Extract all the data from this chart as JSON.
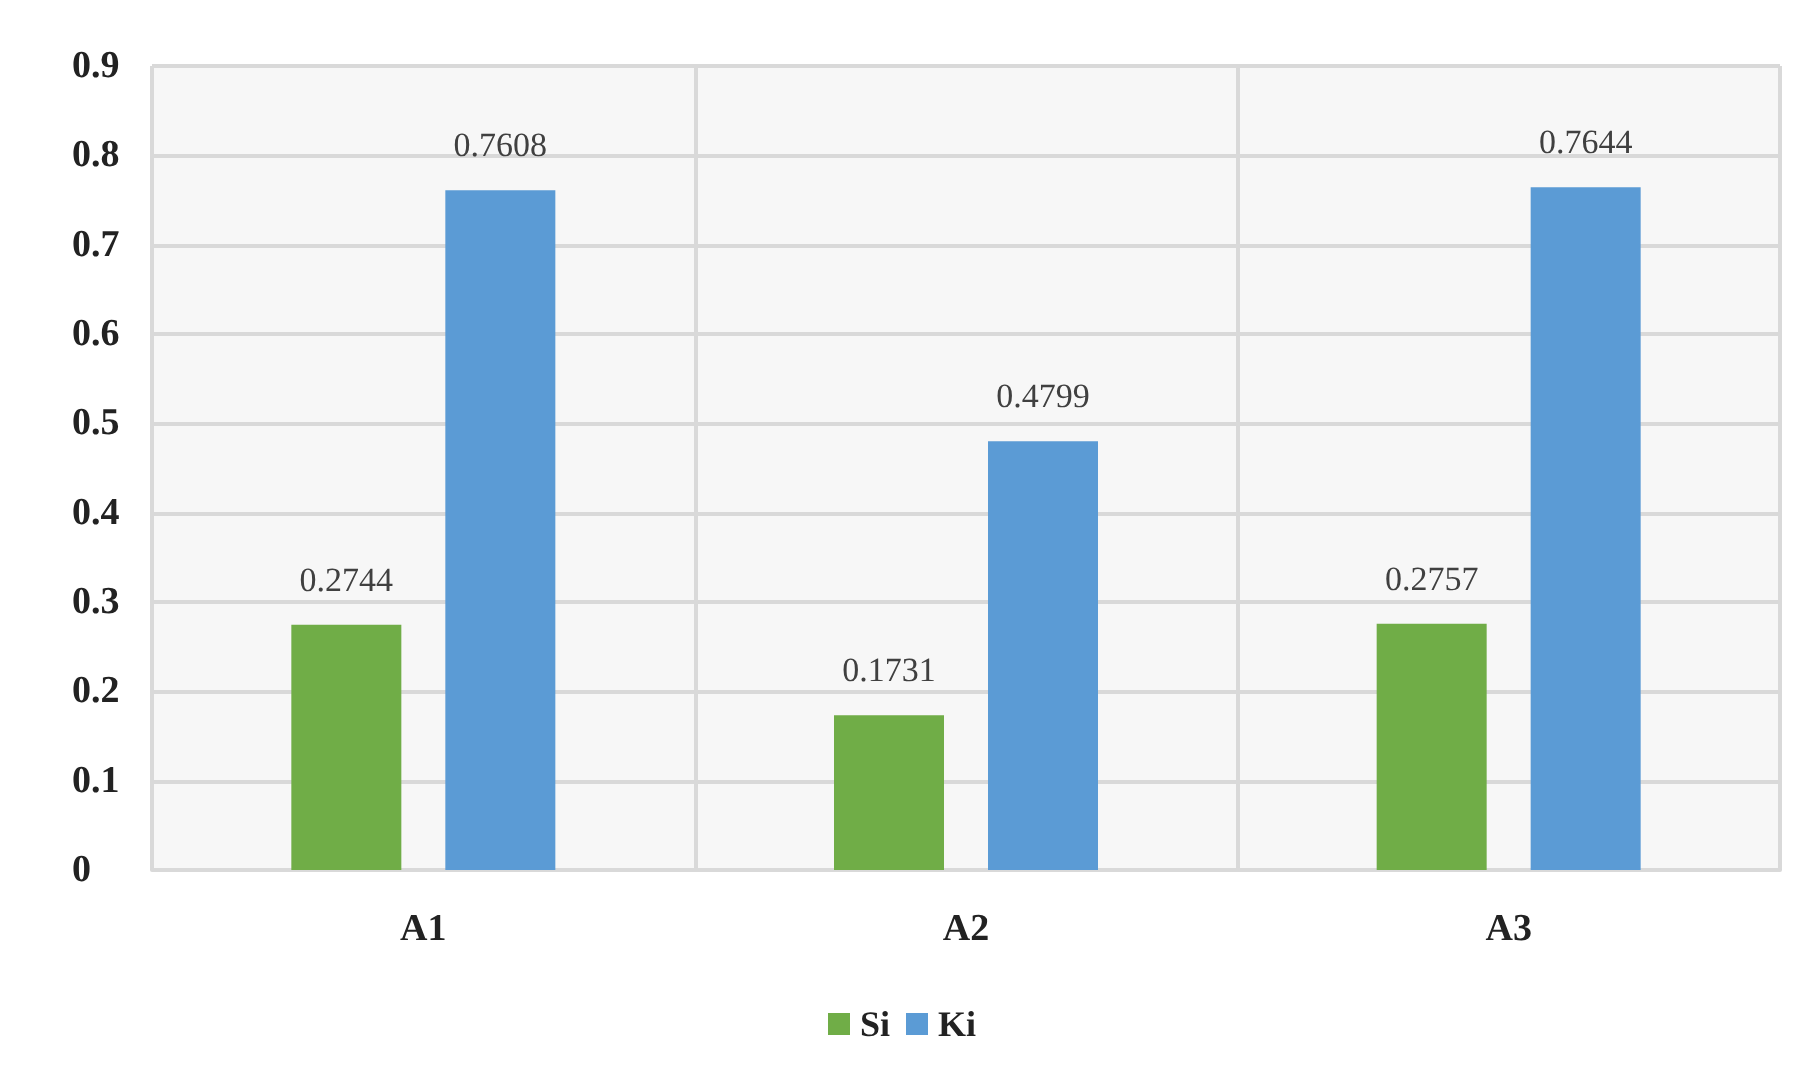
{
  "chart_data": {
    "type": "bar",
    "categories": [
      "A1",
      "A2",
      "A3"
    ],
    "series": [
      {
        "name": "Si",
        "color": "#70ad47",
        "values": [
          0.2744,
          0.1731,
          0.2757
        ]
      },
      {
        "name": "Ki",
        "color": "#5b9bd5",
        "values": [
          0.7608,
          0.4799,
          0.7644
        ]
      }
    ],
    "ylim": [
      0,
      0.9
    ],
    "yticks": [
      0,
      0.1,
      0.2,
      0.3,
      0.4,
      0.5,
      0.6,
      0.7,
      0.8,
      0.9
    ],
    "grid": true,
    "legend": "bottom",
    "data_labels": true
  }
}
